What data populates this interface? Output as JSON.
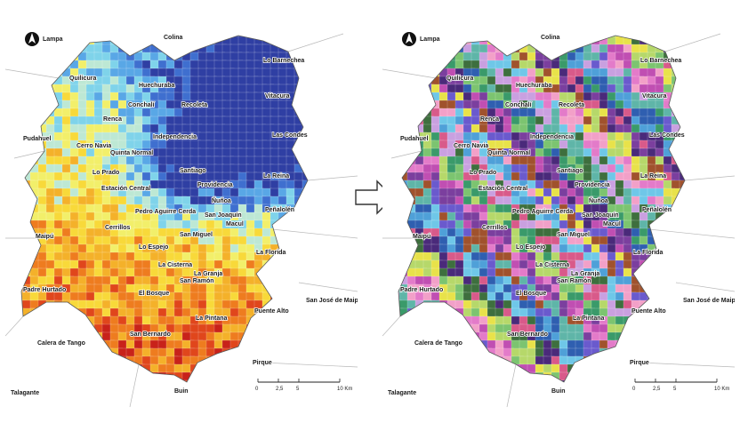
{
  "left_map": {
    "palette": [
      "#2f3fa3",
      "#3f6fcf",
      "#59a7e6",
      "#7fd3ea",
      "#bde8d4",
      "#f2ef6a",
      "#f8d93a",
      "#f4b12a",
      "#ee7c1f",
      "#e0461c",
      "#c8221a"
    ],
    "labels": [
      "Lampa",
      "Colina",
      "Quilicura",
      "Huechuraba",
      "Lo Barnechea",
      "Conchalí",
      "Recoleta",
      "Vitacura",
      "Renca",
      "Independencia",
      "Pudahuel",
      "Cerro Navia",
      "Quinta Normal",
      "Las Condes",
      "Lo Prado",
      "Santiago",
      "Estación Central",
      "Providencia",
      "Ñuñoa",
      "La Reina",
      "Pedro Aguirre Cerda",
      "San Joaquín",
      "Macul",
      "Peñalolén",
      "Cerrillos",
      "Maipú",
      "Lo Espejo",
      "San Miguel",
      "La Cisterna",
      "La Granja",
      "La Florida",
      "San Ramón",
      "El Bosque",
      "Padre Hurtado",
      "San José de Maipo",
      "La Pintana",
      "Puente Alto",
      "San Bernardo",
      "Calera de Tango",
      "Pirque",
      "Talagante",
      "Buin"
    ]
  },
  "right_map": {
    "palette": [
      "#4a2a7a",
      "#7b3f9e",
      "#c04fb2",
      "#e37bc9",
      "#f2a0c8",
      "#6fc7e8",
      "#4fa0d8",
      "#2f5fb0",
      "#3a9a6a",
      "#7cc470",
      "#b6d86a",
      "#e8e24a",
      "#a0522d",
      "#6a5acd",
      "#5fb5a8",
      "#c9a0e0",
      "#3e6f3e",
      "#d85a8a"
    ],
    "labels": [
      "Lampa",
      "Colina",
      "Quilicura",
      "Huechuraba",
      "Lo Barnechea",
      "Conchalí",
      "Recoleta",
      "Vitacura",
      "Renca",
      "Independencia",
      "Pudahuel",
      "Cerro Navia",
      "Quinta Normal",
      "Las Condes",
      "Lo Prado",
      "Santiago",
      "Estación Central",
      "Providencia",
      "Ñuñoa",
      "La Reina",
      "Pedro Aguirre Cerda",
      "San Joaquín",
      "Macul",
      "Peñalolén",
      "Cerrillos",
      "Maipú",
      "Lo Espejo",
      "San Miguel",
      "La Cisterna",
      "La Granja",
      "La Florida",
      "San Ramón",
      "El Bosque",
      "Padre Hurtado",
      "San José de Maipo",
      "La Pintana",
      "Puente Alto",
      "San Bernardo",
      "Calera de Tango",
      "Pirque",
      "Talagante",
      "Buin"
    ]
  },
  "scale_bar": {
    "ticks": [
      "0",
      "2,5",
      "5",
      "10 Km"
    ]
  },
  "north_arrow": "north-arrow-icon",
  "transition_arrow": "right-arrow-icon"
}
